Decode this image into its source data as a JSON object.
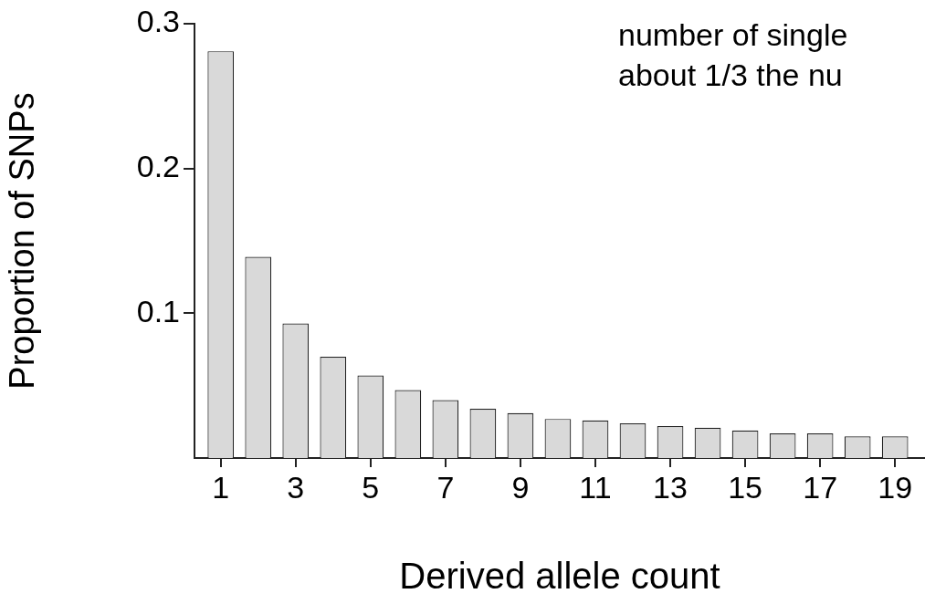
{
  "chart_data": {
    "type": "bar",
    "xlabel": "Derived allele count",
    "ylabel": "Proportion of SNPs",
    "annotations": [
      "number of single",
      "about 1/3 the nu"
    ],
    "x": [
      1,
      2,
      3,
      4,
      5,
      6,
      7,
      8,
      9,
      10,
      11,
      12,
      13,
      14,
      15,
      16,
      17,
      18,
      19
    ],
    "xlim": [
      0.3,
      19.8
    ],
    "xticks": [
      1,
      3,
      5,
      7,
      9,
      11,
      13,
      15,
      17,
      19
    ],
    "values": [
      0.281,
      0.139,
      0.093,
      0.07,
      0.057,
      0.047,
      0.04,
      0.034,
      0.031,
      0.027,
      0.026,
      0.024,
      0.022,
      0.021,
      0.019,
      0.017,
      0.017,
      0.015,
      0.015
    ],
    "color": "#d9d9d9",
    "ylim": [
      0,
      0.3
    ],
    "yticks": [
      0.1,
      0.2,
      0.3
    ],
    "grid": false,
    "legend": false
  }
}
